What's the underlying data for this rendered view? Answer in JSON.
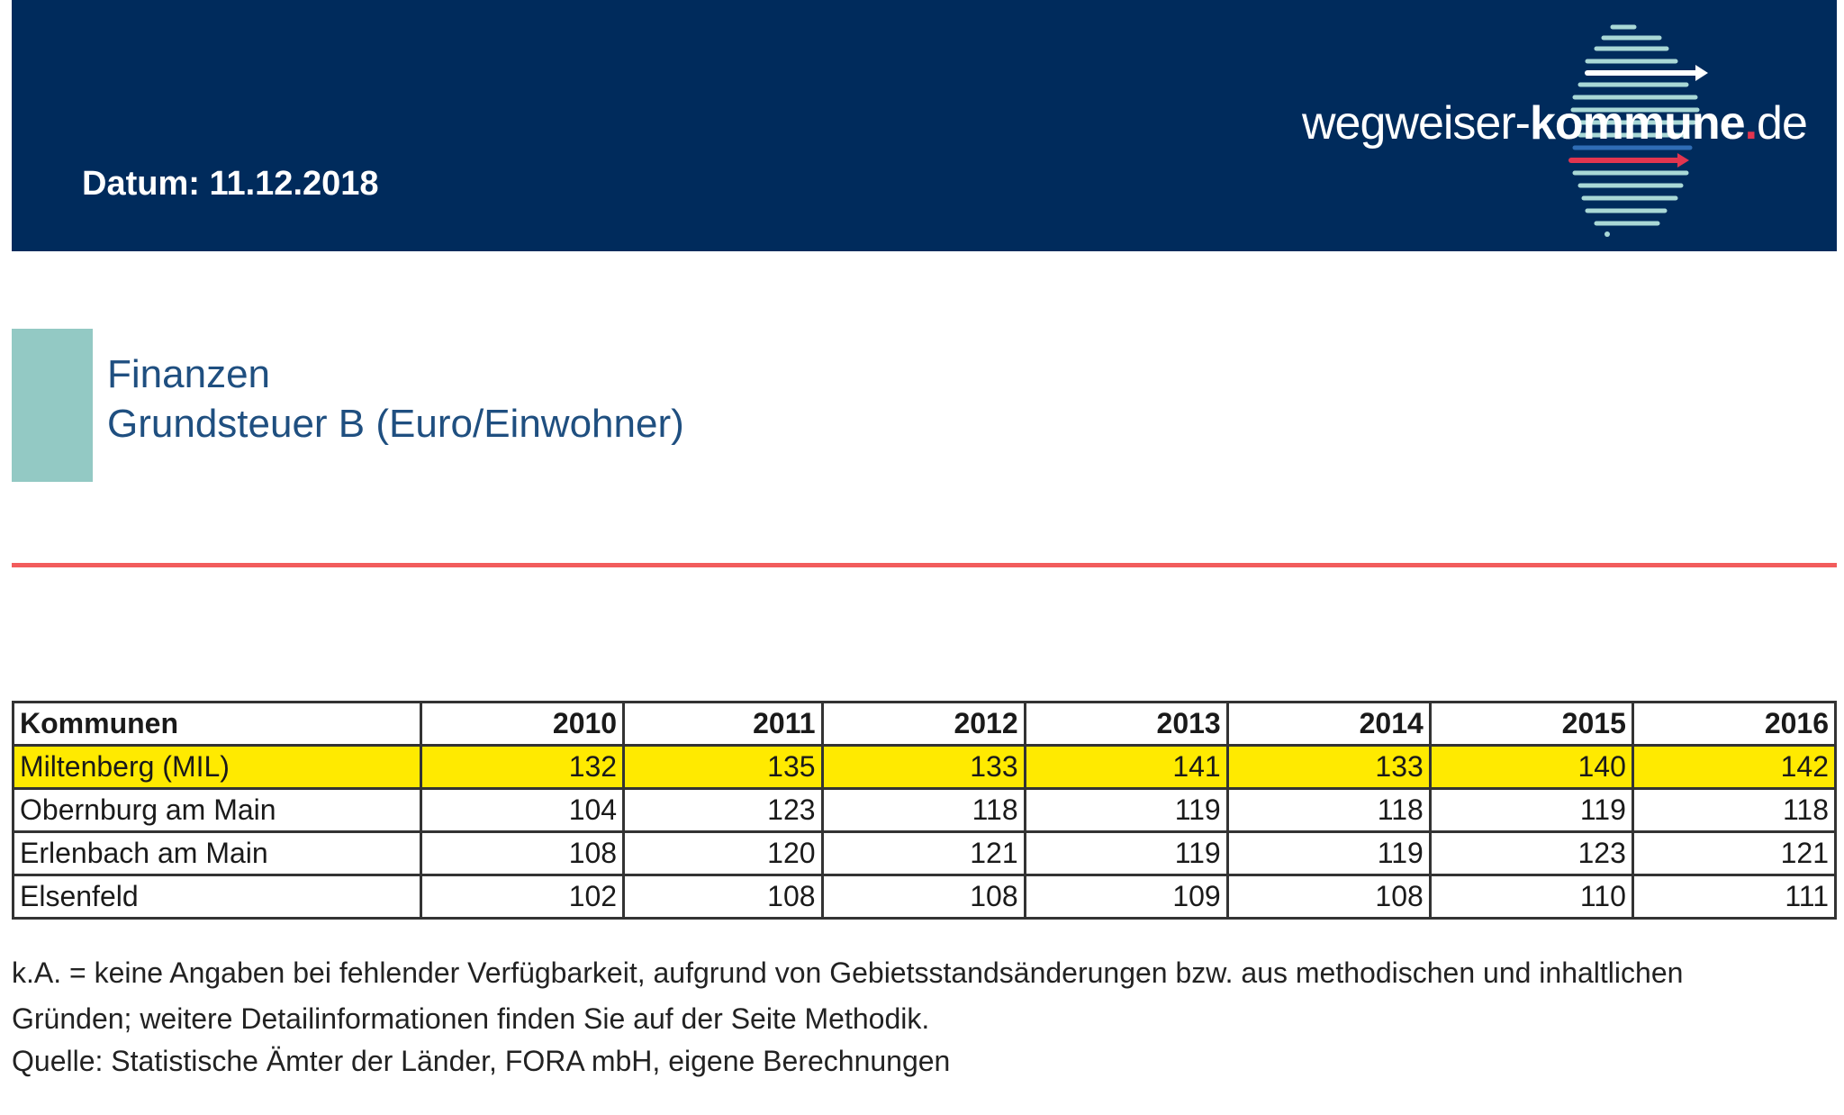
{
  "header": {
    "datum": "Datum: 11.12.2018",
    "logo": {
      "part1": "wegweiser-",
      "part2": "kommune",
      "dot": ".",
      "part3": "de"
    }
  },
  "section": {
    "category": "Finanzen",
    "title": "Grundsteuer B (Euro/Einwohner)"
  },
  "table": {
    "columns": [
      "Kommunen",
      "2010",
      "2011",
      "2012",
      "2013",
      "2014",
      "2015",
      "2016"
    ],
    "rows": [
      {
        "name": "Miltenberg (MIL)",
        "values": [
          "132",
          "135",
          "133",
          "141",
          "133",
          "140",
          "142"
        ],
        "highlight": true
      },
      {
        "name": "Obernburg am Main",
        "values": [
          "104",
          "123",
          "118",
          "119",
          "118",
          "119",
          "118"
        ],
        "highlight": false
      },
      {
        "name": "Erlenbach am Main",
        "values": [
          "108",
          "120",
          "121",
          "119",
          "119",
          "123",
          "121"
        ],
        "highlight": false
      },
      {
        "name": "Elsenfeld",
        "values": [
          "102",
          "108",
          "108",
          "109",
          "108",
          "110",
          "111"
        ],
        "highlight": false
      }
    ]
  },
  "footnote": "k.A. = keine Angaben bei fehlender Verfügbarkeit, aufgrund von Gebietsstandsänderungen bzw. aus methodischen und inhaltlichen Gründen; weitere Detailinformationen finden Sie auf der Seite Methodik.",
  "source": "Quelle: Statistische Ämter der Länder, FORA mbH, eigene Berechnungen",
  "colors": {
    "header_bg": "#002b5c",
    "accent_teal": "#93c9c4",
    "rule_red": "#f25c5c",
    "highlight_yellow": "#ffea00"
  }
}
